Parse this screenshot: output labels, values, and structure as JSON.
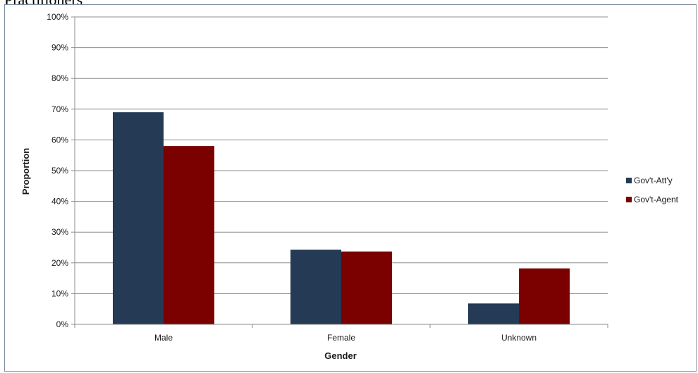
{
  "page_heading_partial": "Practitioners",
  "chart_data": {
    "type": "bar",
    "categories": [
      "Male",
      "Female",
      "Unknown"
    ],
    "series": [
      {
        "name": "Gov't-Att'y",
        "color": "#243a55",
        "values": [
          69,
          24.3,
          6.8
        ]
      },
      {
        "name": "Gov't-Agent",
        "color": "#7b0000",
        "values": [
          58,
          23.7,
          18.2
        ]
      }
    ],
    "xlabel": "Gender",
    "ylabel": "Proportion",
    "ylim": [
      0,
      100
    ],
    "yticks": [
      "0%",
      "10%",
      "20%",
      "30%",
      "40%",
      "50%",
      "60%",
      "70%",
      "80%",
      "90%",
      "100%"
    ],
    "grid": true,
    "legend_position": "right"
  }
}
